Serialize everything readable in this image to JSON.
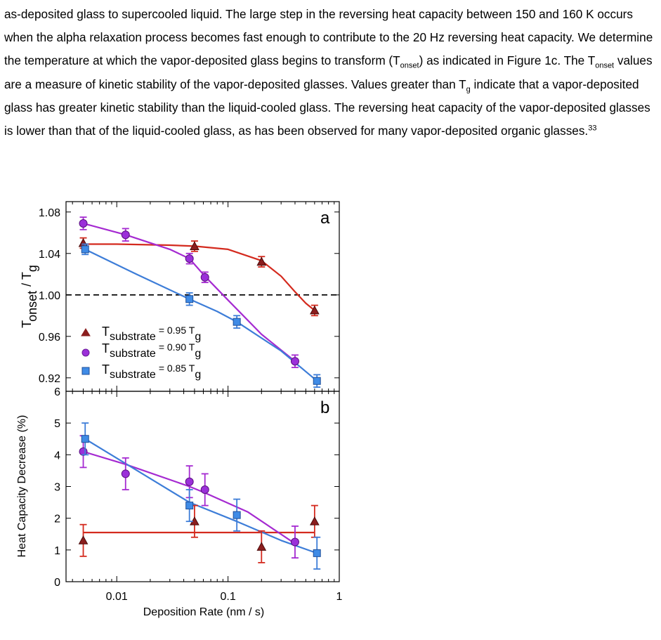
{
  "paragraph": {
    "p1": "as-deposited glass to supercooled liquid. The large step in the reversing heat capacity between 150 and 160 K occurs when the alpha relaxation process becomes fast enough to contribute to the 20 Hz reversing heat capacity. We determine the temperature at which the vapor-deposited glass begins to transform (T",
    "onset_sub": "onset",
    "p2": ") as indicated in Figure 1c. The T",
    "onset_sub2": "onset",
    "p3": " values are a measure of kinetic stability of the vapor-deposited glasses. Values greater than T",
    "g_sub": "g",
    "p4": " indicate that a vapor-deposited glass has greater kinetic stability than the liquid-cooled glass. The reversing heat capacity of the vapor-deposited glasses is lower than that of the liquid-cooled glass, as has been observed for many vapor-deposited organic glasses.",
    "citation": "33"
  },
  "figure": {
    "colors": {
      "red": "#d42a1e",
      "purple": "#a52ad1",
      "blue": "#3d7dd8",
      "red_fill": "#8b1e1e",
      "purple_fill": "#9b30d9",
      "blue_fill": "#3f8be6"
    },
    "legend": [
      {
        "marker": "triangle",
        "color": "red",
        "prefix": "T",
        "sub": "substrate",
        "eq": "= 0.95 T",
        "gsub": "g"
      },
      {
        "marker": "circle",
        "color": "purple",
        "prefix": "T",
        "sub": "substrate",
        "eq": "= 0.90 T",
        "gsub": "g"
      },
      {
        "marker": "square",
        "color": "blue",
        "prefix": "T",
        "sub": "substrate",
        "eq": "= 0.85 T",
        "gsub": "g"
      }
    ]
  },
  "chart_data": [
    {
      "type": "scatter",
      "panel_label": "a",
      "ylabel_main": "T",
      "ylabel_sub": "onset",
      "ylabel_rest": "/ T",
      "ylabel_sub2": "g",
      "xscale": "log",
      "xlim": [
        0.0035,
        1
      ],
      "ylim": [
        0.907,
        1.09
      ],
      "yticks": [
        0.92,
        0.96,
        1.0,
        1.04,
        1.08
      ],
      "ytick_labels": [
        "0.92",
        "0.96",
        "1.00",
        "1.04",
        "1.08"
      ],
      "reference_line_y": 1.0,
      "series": [
        {
          "color": "red",
          "marker": "triangle",
          "x": [
            0.005,
            0.05,
            0.2,
            0.6
          ],
          "y": [
            1.05,
            1.047,
            1.032,
            0.985
          ],
          "err": [
            0.005,
            0.005,
            0.005,
            0.005
          ],
          "fit_x": [
            0.005,
            0.01,
            0.03,
            0.05,
            0.1,
            0.2,
            0.3,
            0.4,
            0.5,
            0.6
          ],
          "fit_y": [
            1.049,
            1.049,
            1.048,
            1.047,
            1.044,
            1.033,
            1.018,
            1.003,
            0.992,
            0.985
          ]
        },
        {
          "color": "purple",
          "marker": "circle",
          "x": [
            0.005,
            0.012,
            0.045,
            0.062,
            0.4
          ],
          "y": [
            1.069,
            1.058,
            1.035,
            1.017,
            0.936
          ],
          "err": [
            0.006,
            0.006,
            0.005,
            0.005,
            0.006
          ],
          "fit_x": [
            0.005,
            0.012,
            0.03,
            0.045,
            0.062,
            0.1,
            0.2,
            0.4
          ],
          "fit_y": [
            1.069,
            1.058,
            1.044,
            1.035,
            1.018,
            0.995,
            0.962,
            0.936
          ]
        },
        {
          "color": "blue",
          "marker": "square",
          "x": [
            0.0052,
            0.045,
            0.12,
            0.63
          ],
          "y": [
            1.044,
            0.996,
            0.974,
            0.917
          ],
          "err": [
            0.005,
            0.006,
            0.006,
            0.006
          ],
          "fit_x": [
            0.0052,
            0.015,
            0.045,
            0.08,
            0.12,
            0.3,
            0.63
          ],
          "fit_y": [
            1.044,
            1.02,
            0.996,
            0.984,
            0.974,
            0.946,
            0.917
          ]
        }
      ]
    },
    {
      "type": "scatter",
      "panel_label": "b",
      "ylabel": "Heat Capacity Decrease (%)",
      "xlabel": "Deposition Rate (nm / s)",
      "xscale": "log",
      "xlim": [
        0.0035,
        1
      ],
      "ylim": [
        0,
        6
      ],
      "yticks": [
        0,
        1,
        2,
        3,
        4,
        5,
        6
      ],
      "ytick_labels": [
        "0",
        "1",
        "2",
        "3",
        "4",
        "5",
        "6"
      ],
      "xticks": [
        0.01,
        0.1,
        1
      ],
      "xtick_labels": [
        "0.01",
        "0.1",
        "1"
      ],
      "series": [
        {
          "color": "red",
          "marker": "triangle",
          "x": [
            0.005,
            0.05,
            0.2,
            0.6
          ],
          "y": [
            1.3,
            1.9,
            1.1,
            1.9
          ],
          "err": [
            0.5,
            0.5,
            0.5,
            0.5
          ],
          "fit_x": [
            0.005,
            0.6
          ],
          "fit_y": [
            1.55,
            1.55
          ]
        },
        {
          "color": "purple",
          "marker": "circle",
          "x": [
            0.005,
            0.012,
            0.045,
            0.062,
            0.4
          ],
          "y": [
            4.1,
            3.4,
            3.15,
            2.9,
            1.25
          ],
          "err": [
            0.5,
            0.5,
            0.5,
            0.5,
            0.5
          ],
          "fit_x": [
            0.005,
            0.012,
            0.045,
            0.062,
            0.15,
            0.4
          ],
          "fit_y": [
            4.1,
            3.7,
            3.0,
            2.8,
            2.2,
            1.2
          ]
        },
        {
          "color": "blue",
          "marker": "square",
          "x": [
            0.0052,
            0.045,
            0.12,
            0.63
          ],
          "y": [
            4.5,
            2.4,
            2.1,
            0.9
          ],
          "err": [
            0.5,
            0.5,
            0.5,
            0.5
          ],
          "fit_x": [
            0.0052,
            0.02,
            0.045,
            0.12,
            0.3,
            0.63
          ],
          "fit_y": [
            4.5,
            3.25,
            2.5,
            1.9,
            1.3,
            0.9
          ]
        }
      ]
    }
  ]
}
